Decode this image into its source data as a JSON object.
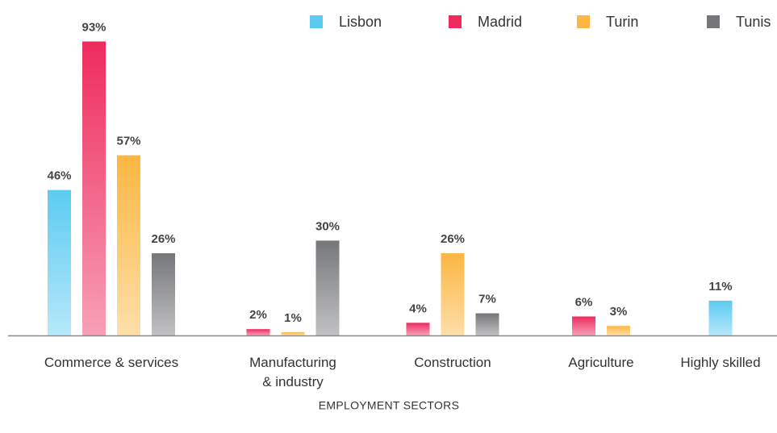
{
  "chart_data": {
    "type": "bar",
    "xlabel": "EMPLOYMENT SECTORS",
    "categories": [
      "Commerce & services",
      "Manufacturing\n& industry",
      "Construction",
      "Agriculture",
      "Highly skilled"
    ],
    "series": [
      {
        "name": "Lisbon",
        "color": "#5ccbf2",
        "values": [
          46,
          null,
          null,
          null,
          11
        ],
        "value_labels": [
          "46%",
          null,
          null,
          null,
          "11%"
        ]
      },
      {
        "name": "Madrid",
        "color": "#ee2b5e",
        "values": [
          93,
          2,
          4,
          6,
          null
        ],
        "value_labels": [
          "93%",
          "2%",
          "4%",
          "6%",
          null
        ]
      },
      {
        "name": "Turin",
        "color": "#fcb641",
        "values": [
          57,
          1,
          26,
          3,
          null
        ],
        "value_labels": [
          "57%",
          "1%",
          "26%",
          "3%",
          null
        ]
      },
      {
        "name": "Tunis",
        "color": "#76777a",
        "values": [
          26,
          30,
          7,
          null,
          null
        ],
        "value_labels": [
          "26%",
          "30%",
          "7%",
          null,
          null
        ]
      }
    ],
    "legend": "top-right"
  }
}
